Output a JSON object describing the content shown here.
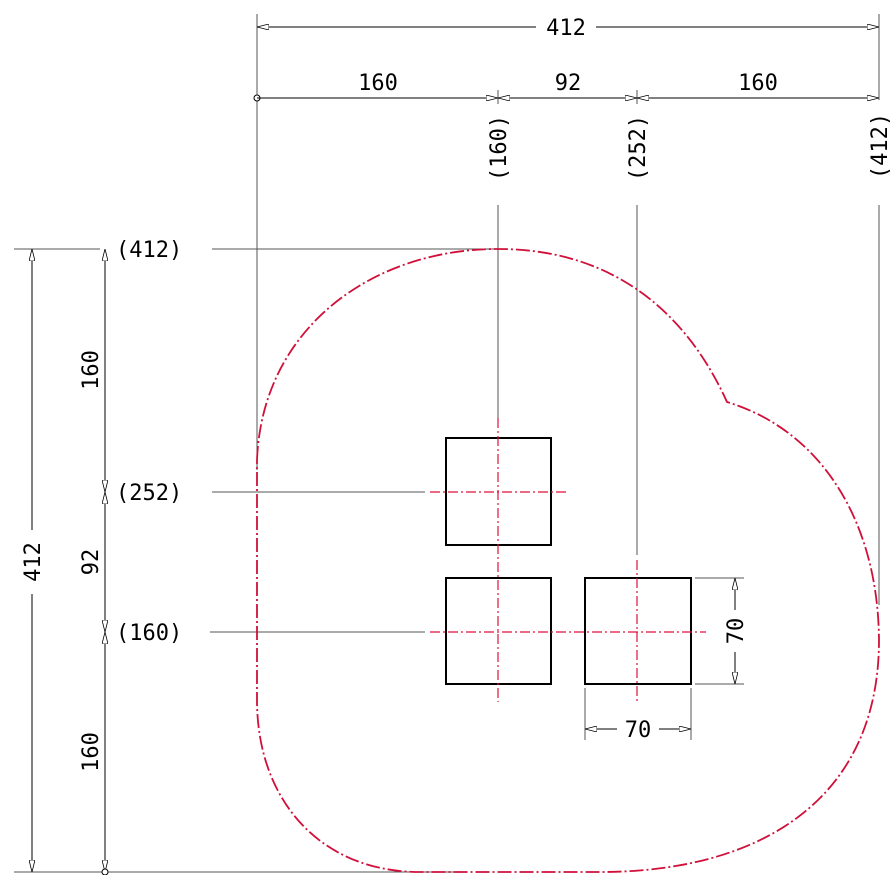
{
  "top_dimensions": {
    "overall": "412",
    "left_segment": "160",
    "middle_segment": "92",
    "right_segment": "160",
    "ref_a": "(160)",
    "ref_b": "(252)",
    "ref_c": "(412)"
  },
  "left_dimensions": {
    "overall": "412",
    "upper_segment": "160",
    "middle_segment": "92",
    "lower_segment": "160",
    "ref_top": "(412)",
    "ref_mid": "(252)",
    "ref_low": "(160)"
  },
  "square_dimensions": {
    "width": "70",
    "height": "70"
  },
  "colors": {
    "outline": "#d0103a",
    "centerline": "#e0103a",
    "lines": "#000000"
  }
}
